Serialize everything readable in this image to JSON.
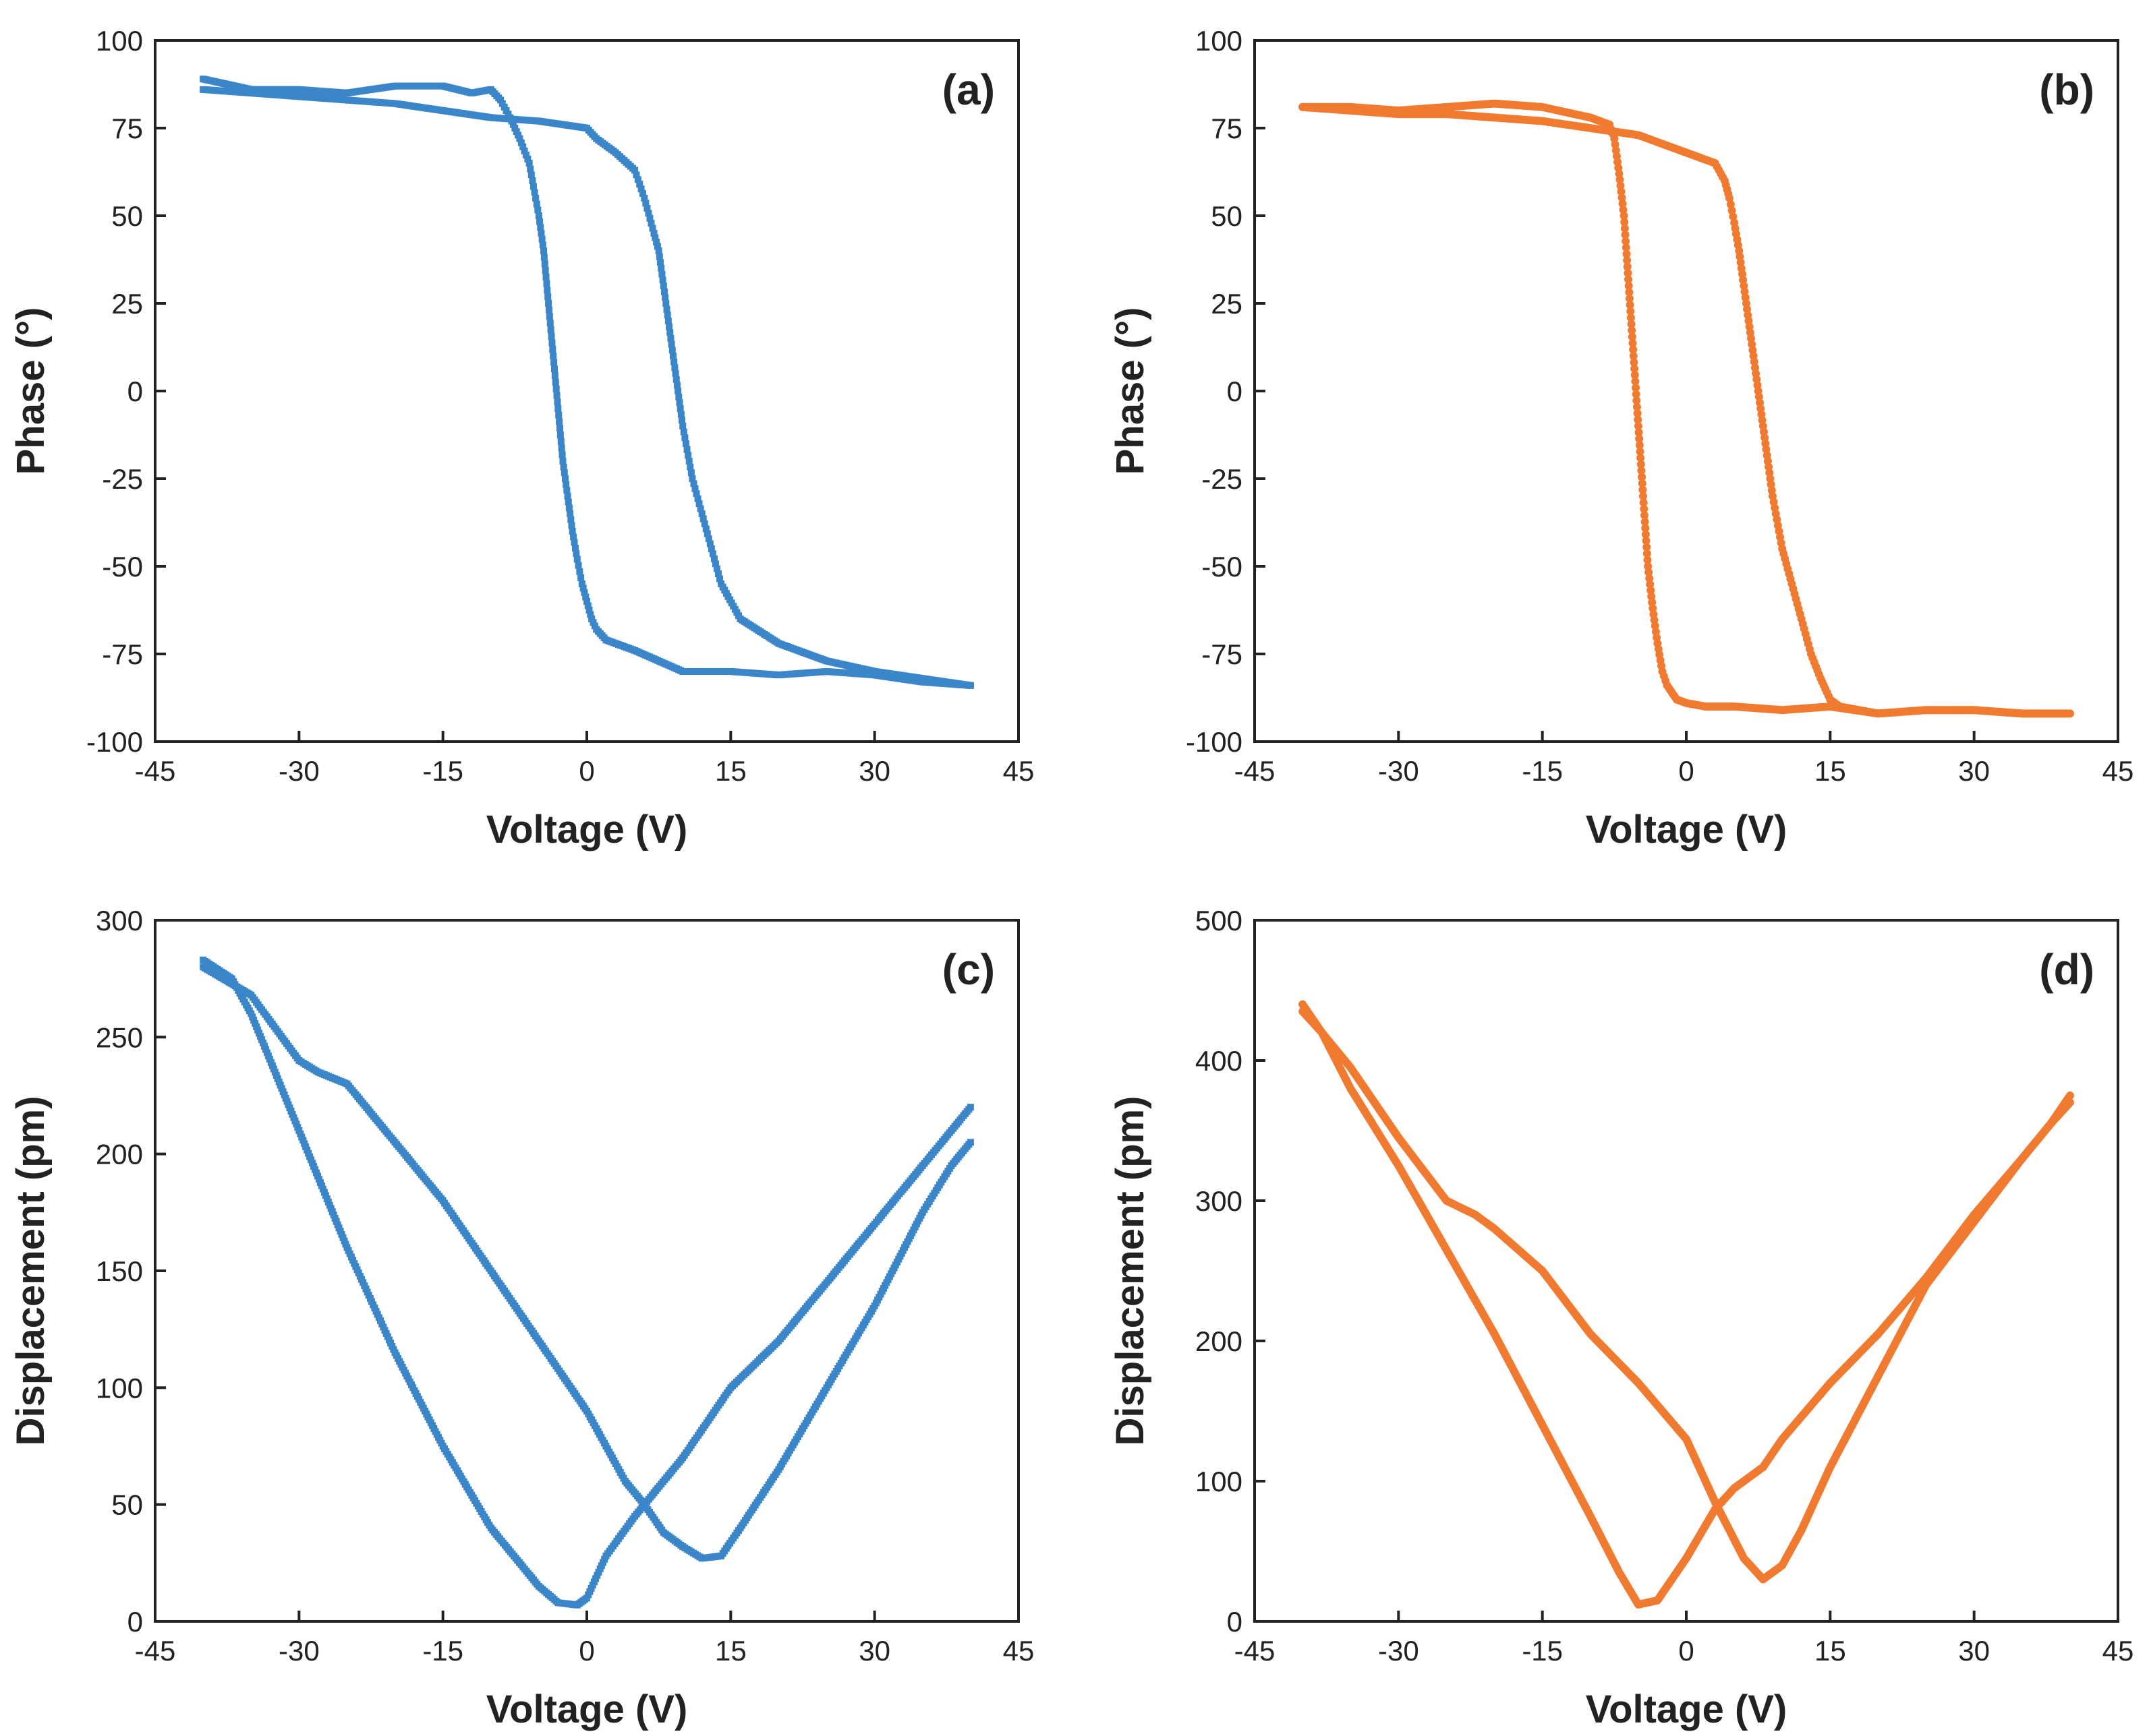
{
  "chart_data": [
    {
      "type": "scatter",
      "panel_label": "(a)",
      "xlabel": "Voltage (V)",
      "ylabel": "Phase (°)",
      "xlim": [
        -45,
        45
      ],
      "ylim": [
        -100,
        100
      ],
      "xticks": [
        -45,
        -30,
        -15,
        0,
        15,
        30,
        45
      ],
      "yticks": [
        -100,
        -75,
        -50,
        -25,
        0,
        25,
        50,
        75,
        100
      ],
      "grid": false,
      "color": "#3a86c8",
      "marker": "square",
      "series": [
        {
          "x": [
            -40,
            -35,
            -30,
            -25,
            -20,
            -15,
            -12,
            -10,
            -9,
            -8,
            -7,
            -6,
            -5,
            -4.5,
            -4,
            -3.5,
            -3,
            -2.5,
            -2,
            -1.5,
            -1,
            -0.5,
            0,
            0.5,
            1,
            2,
            5,
            10,
            15,
            20,
            25,
            30,
            35,
            40
          ],
          "y": [
            89,
            86,
            86,
            85,
            87,
            87,
            85,
            86,
            83,
            78,
            72,
            65,
            50,
            40,
            25,
            10,
            -5,
            -20,
            -30,
            -40,
            -48,
            -55,
            -60,
            -65,
            -68,
            -71,
            -74,
            -80,
            -80,
            -81,
            -80,
            -81,
            -83,
            -84
          ]
        },
        {
          "x": [
            40,
            35,
            30,
            25,
            20,
            16,
            14,
            13,
            12,
            11,
            10,
            9.5,
            9,
            8.5,
            8,
            7.5,
            7,
            6,
            5,
            3,
            1,
            0,
            -5,
            -10,
            -15,
            -20,
            -25,
            -30,
            -35,
            -40
          ],
          "y": [
            -84,
            -82,
            -80,
            -77,
            -72,
            -65,
            -55,
            -45,
            -35,
            -25,
            -10,
            0,
            10,
            20,
            30,
            40,
            45,
            55,
            63,
            68,
            72,
            75,
            77,
            78,
            80,
            82,
            83,
            84,
            85,
            86
          ]
        }
      ]
    },
    {
      "type": "scatter",
      "panel_label": "(b)",
      "xlabel": "Voltage (V)",
      "ylabel": "Phase (°)",
      "xlim": [
        -45,
        45
      ],
      "ylim": [
        -100,
        100
      ],
      "xticks": [
        -45,
        -30,
        -15,
        0,
        15,
        30,
        45
      ],
      "yticks": [
        -100,
        -75,
        -50,
        -25,
        0,
        25,
        50,
        75,
        100
      ],
      "grid": false,
      "color": "#f07a30",
      "marker": "circle",
      "series": [
        {
          "x": [
            -40,
            -35,
            -30,
            -25,
            -20,
            -15,
            -10,
            -8,
            -7.5,
            -7,
            -6.5,
            -6,
            -5.5,
            -5,
            -4.5,
            -4,
            -3.5,
            -3,
            -2.5,
            -2,
            -1.5,
            -1,
            0,
            2,
            5,
            10,
            15,
            20,
            25,
            30,
            35,
            40
          ],
          "y": [
            81,
            81,
            80,
            81,
            82,
            81,
            78,
            76,
            72,
            62,
            50,
            30,
            10,
            -10,
            -30,
            -50,
            -62,
            -72,
            -80,
            -84,
            -86,
            -88,
            -89,
            -90,
            -90,
            -91,
            -90,
            -92,
            -91,
            -91,
            -92,
            -92
          ]
        },
        {
          "x": [
            40,
            35,
            30,
            25,
            20,
            16,
            15,
            14,
            13,
            12,
            11,
            10,
            9,
            8,
            7.5,
            7,
            6.5,
            6,
            5.5,
            5,
            4.5,
            4,
            3,
            1,
            0,
            -5,
            -10,
            -15,
            -20,
            -25,
            -30,
            -35,
            -40
          ],
          "y": [
            -92,
            -92,
            -91,
            -91,
            -92,
            -90,
            -88,
            -82,
            -75,
            -65,
            -55,
            -45,
            -30,
            -10,
            0,
            10,
            20,
            30,
            40,
            48,
            55,
            60,
            65,
            67,
            68,
            73,
            75,
            77,
            78,
            79,
            79,
            80,
            81
          ]
        }
      ]
    },
    {
      "type": "scatter",
      "panel_label": "(c)",
      "xlabel": "Voltage (V)",
      "ylabel": "Displacement (pm)",
      "xlim": [
        -45,
        45
      ],
      "ylim": [
        0,
        300
      ],
      "xticks": [
        -45,
        -30,
        -15,
        0,
        15,
        30,
        45
      ],
      "yticks": [
        0,
        50,
        100,
        150,
        200,
        250,
        300
      ],
      "grid": false,
      "color": "#3a86c8",
      "marker": "square",
      "series": [
        {
          "x": [
            -40,
            -37,
            -35,
            -30,
            -25,
            -20,
            -15,
            -10,
            -5,
            -3,
            -1,
            0,
            2,
            5,
            7,
            10,
            15,
            20,
            25,
            30,
            35,
            38,
            40
          ],
          "y": [
            283,
            275,
            260,
            210,
            160,
            115,
            75,
            40,
            15,
            8,
            7,
            10,
            28,
            45,
            55,
            70,
            100,
            120,
            145,
            170,
            195,
            210,
            220
          ]
        },
        {
          "x": [
            40,
            38,
            35,
            30,
            25,
            20,
            16,
            14,
            12,
            10,
            8,
            6,
            4,
            2,
            0,
            -5,
            -10,
            -15,
            -20,
            -25,
            -28,
            -30,
            -35,
            -40
          ],
          "y": [
            205,
            195,
            175,
            135,
            100,
            65,
            40,
            28,
            27,
            32,
            38,
            50,
            60,
            75,
            90,
            120,
            150,
            180,
            205,
            230,
            235,
            240,
            268,
            280
          ]
        }
      ]
    },
    {
      "type": "scatter",
      "panel_label": "(d)",
      "xlabel": "Voltage (V)",
      "ylabel": "Displacement (pm)",
      "xlim": [
        -45,
        45
      ],
      "ylim": [
        0,
        500
      ],
      "xticks": [
        -45,
        -30,
        -15,
        0,
        15,
        30,
        45
      ],
      "yticks": [
        0,
        100,
        200,
        300,
        400,
        500
      ],
      "grid": false,
      "color": "#f07a30",
      "marker": "circle",
      "series": [
        {
          "x": [
            -40,
            -38,
            -35,
            -30,
            -25,
            -20,
            -15,
            -10,
            -7,
            -5,
            -3,
            0,
            3,
            5,
            8,
            10,
            15,
            20,
            25,
            30,
            35,
            38,
            40
          ],
          "y": [
            440,
            420,
            380,
            325,
            265,
            205,
            140,
            75,
            35,
            12,
            15,
            45,
            80,
            95,
            110,
            130,
            170,
            205,
            245,
            290,
            330,
            355,
            375
          ]
        },
        {
          "x": [
            40,
            38,
            35,
            30,
            25,
            20,
            15,
            12,
            10,
            8,
            6,
            3,
            0,
            -5,
            -10,
            -15,
            -20,
            -22,
            -25,
            -30,
            -35,
            -38,
            -40
          ],
          "y": [
            370,
            355,
            330,
            285,
            240,
            175,
            110,
            65,
            40,
            30,
            45,
            85,
            130,
            170,
            205,
            250,
            280,
            290,
            300,
            345,
            395,
            420,
            435
          ]
        }
      ]
    }
  ]
}
